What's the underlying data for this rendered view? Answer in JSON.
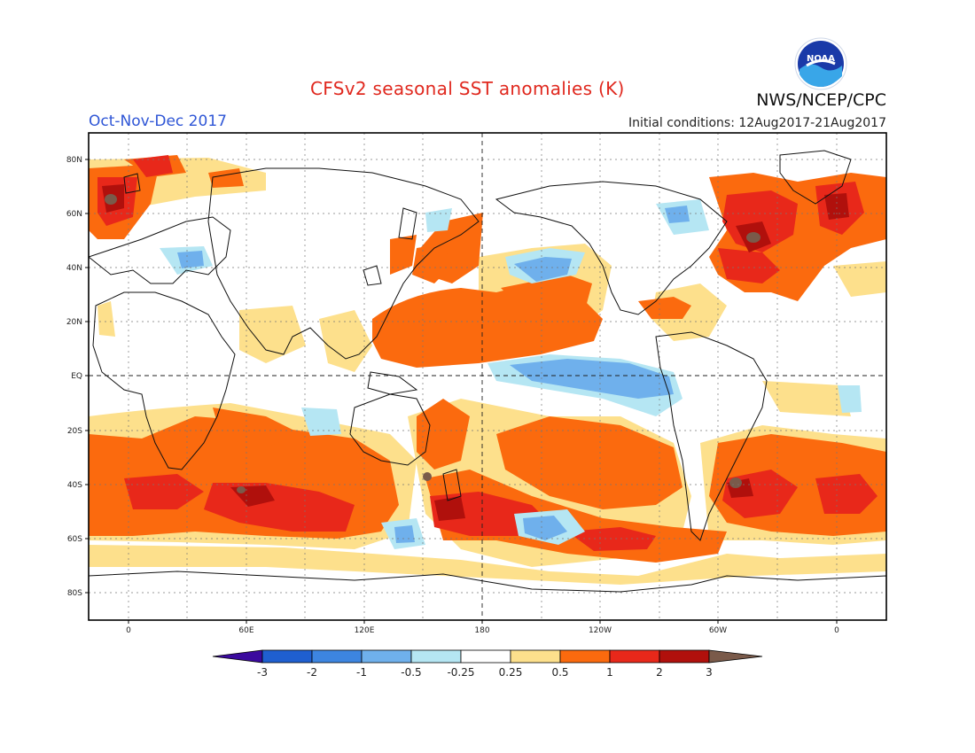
{
  "header": {
    "title": "CFSv2 seasonal SST anomalies (K)",
    "season": "Oct-Nov-Dec 2017",
    "initial_conditions": "Initial conditions: 12Aug2017-21Aug2017",
    "agency": "NWS/NCEP/CPC",
    "logo_text": "NOAA"
  },
  "map": {
    "lat_labels": [
      "80N",
      "60N",
      "40N",
      "20N",
      "EQ",
      "20S",
      "40S",
      "60S",
      "80S"
    ],
    "lon_labels": [
      "0",
      "60E",
      "120E",
      "180",
      "120W",
      "60W",
      "0"
    ]
  },
  "colorbar": {
    "labels": [
      "-3",
      "-2",
      "-1",
      "-0.5",
      "-0.25",
      "0.25",
      "0.5",
      "1",
      "2",
      "3"
    ],
    "colors": {
      "lt_-3": "#3b0a9e",
      "-3_-2": "#1f5fd0",
      "-2_-1": "#3d85e0",
      "-1_-0.5": "#6fb0ec",
      "-0.5_-0.25": "#b5e6f3",
      "-0.25_0.25": "#ffffff",
      "0.25_0.5": "#fde08c",
      "0.5_1": "#fb6a0e",
      "1_2": "#e8281a",
      "2_3": "#b0100c",
      "gt_3": "#7a5a4a"
    }
  }
}
